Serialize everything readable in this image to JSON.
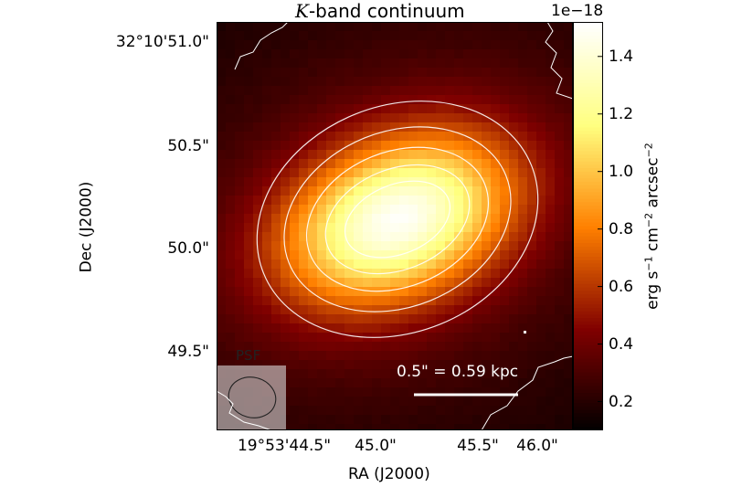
{
  "chart_data": {
    "type": "heatmap",
    "title_prefix": "K",
    "title_suffix": "-band continuum",
    "xlabel": "RA (J2000)",
    "ylabel": "Dec (J2000)",
    "x_tick_labels": [
      "19°53'44.5\"",
      "45.0\"",
      "45.5\"",
      "46.0\""
    ],
    "y_tick_labels": [
      "32°10'51.0\"",
      "50.5\"",
      "50.0\"",
      "49.5\""
    ],
    "colorbar": {
      "label": "erg s⁻¹ cm⁻² arcsec⁻²",
      "offset_text": "1e−18",
      "ticks": [
        "0.2",
        "0.4",
        "0.6",
        "0.8",
        "1.0",
        "1.2",
        "1.4"
      ],
      "tick_values": [
        0.2,
        0.4,
        0.6,
        0.8,
        1.0,
        1.2,
        1.4
      ],
      "vmin": 0.1,
      "vmax": 1.52,
      "colormap": "afmhot"
    },
    "peak_value": 1.5,
    "scalebar_label": "0.5\" = 0.59 kpc",
    "psf_label": "PSF",
    "contour_color": "#ffffff"
  }
}
